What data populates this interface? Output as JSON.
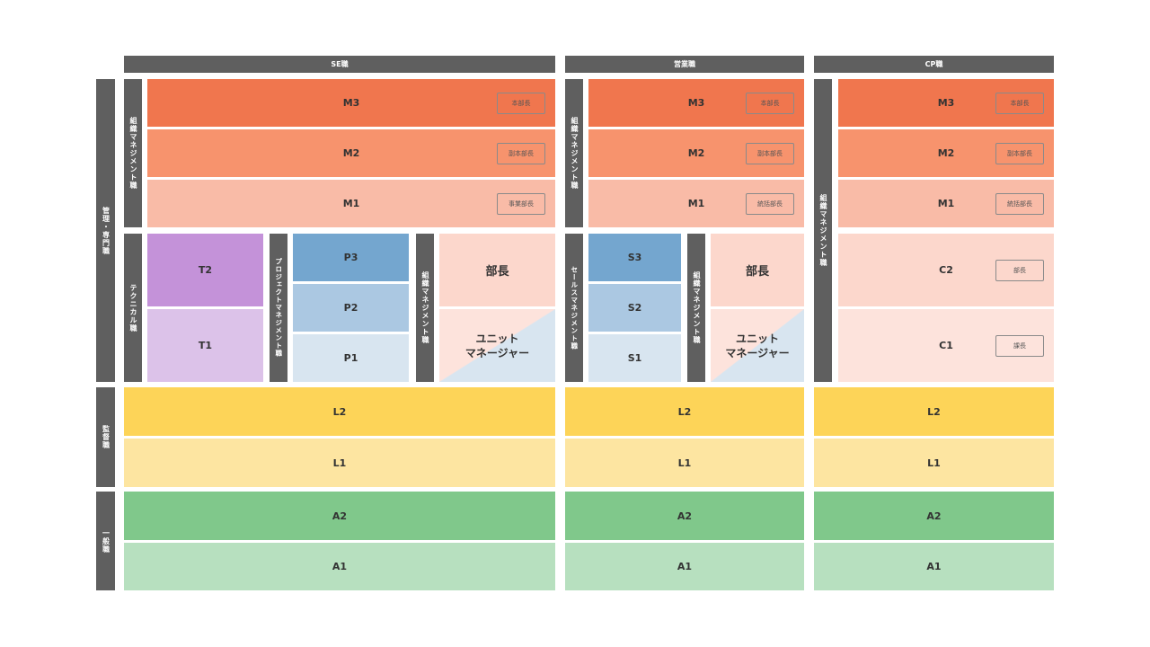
{
  "columns": {
    "se": "SE職",
    "sales": "営業職",
    "cp": "CP職"
  },
  "side": {
    "management": "管理・専門職",
    "supervisor": "監督職",
    "general": "一般職"
  },
  "tracks": {
    "org_mgmt": "組織マネジメント職",
    "technical": "テクニカル職",
    "project_mgmt": "プロジェクトマネジメント職",
    "sales_mgmt": "セールスマネジメント職"
  },
  "se": {
    "m3": {
      "label": "M3",
      "tag": "本部長"
    },
    "m2": {
      "label": "M2",
      "tag": "副本部長"
    },
    "m1": {
      "label": "M1",
      "tag": "事業部長"
    },
    "t2": "T2",
    "t1": "T1",
    "p3": "P3",
    "p2": "P2",
    "p1": "P1",
    "dept_head": "部長",
    "unit_manager": [
      "ユニット",
      "マネージャー"
    ],
    "l2": "L2",
    "l1": "L1",
    "a2": "A2",
    "a1": "A1"
  },
  "sales": {
    "m3": {
      "label": "M3",
      "tag": "本部長"
    },
    "m2": {
      "label": "M2",
      "tag": "副本部長"
    },
    "m1": {
      "label": "M1",
      "tag": "統括部長"
    },
    "s3": "S3",
    "s2": "S2",
    "s1": "S1",
    "dept_head": "部長",
    "unit_manager": [
      "ユニット",
      "マネージャー"
    ],
    "l2": "L2",
    "l1": "L1",
    "a2": "A2",
    "a1": "A1"
  },
  "cp": {
    "m3": {
      "label": "M3",
      "tag": "本部長"
    },
    "m2": {
      "label": "M2",
      "tag": "副本部長"
    },
    "m1": {
      "label": "M1",
      "tag": "統括部長"
    },
    "c2": {
      "label": "C2",
      "tag": "部長"
    },
    "c1": {
      "label": "C1",
      "tag": "課長"
    },
    "l2": "L2",
    "l1": "L1",
    "a2": "A2",
    "a1": "A1"
  },
  "colors": {
    "bar_gray": "#5f5f5f",
    "m3": "#f0764e",
    "m2": "#f7936d",
    "m1": "#f9bba7",
    "technical": "#c492d9",
    "project_blue": "#74a6cf",
    "supervisor_yellow": "#fdd458",
    "general_green": "#80c88b"
  }
}
